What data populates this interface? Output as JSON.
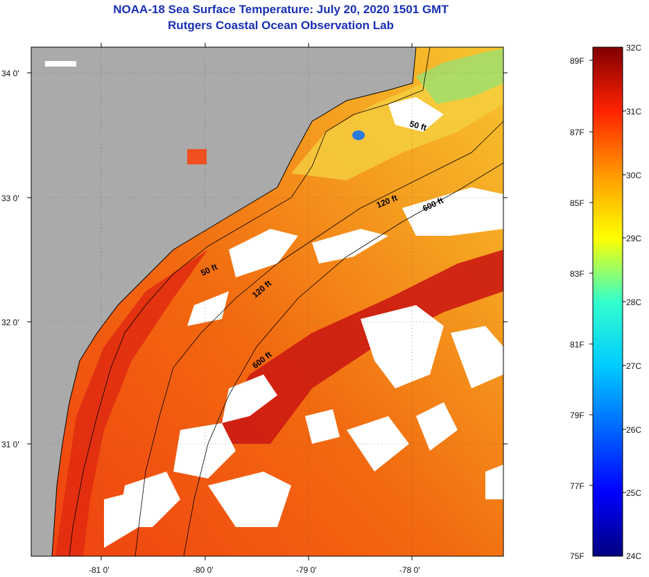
{
  "title": {
    "line1": "NOAA-18 Sea Surface Temperature:  July 20, 2020 1501 GMT",
    "line2": "Rutgers Coastal Ocean Observation Lab"
  },
  "map": {
    "lat_labels": [
      "34 0'",
      "33 0'",
      "32 0'",
      "31 0'"
    ],
    "lon_labels": [
      "-81 0'",
      "-80 0'",
      "-79 0'",
      "-78 0'"
    ],
    "contour_labels": [
      "50 ft",
      "120 ft",
      "600 ft",
      "50 ft",
      "120 ft",
      "600 ft"
    ],
    "land_color": "#aaaaaa",
    "cloud_color": "#ffffff"
  },
  "colorbar": {
    "celsius_labels": [
      "32C",
      "31C",
      "30C",
      "29C",
      "28C",
      "27C",
      "26C",
      "25C",
      "24C"
    ],
    "fahrenheit_labels": [
      "89F",
      "87F",
      "85F",
      "83F",
      "81F",
      "79F",
      "77F",
      "75F"
    ],
    "range_c": [
      24,
      32
    ],
    "range_f": [
      75,
      89
    ]
  }
}
